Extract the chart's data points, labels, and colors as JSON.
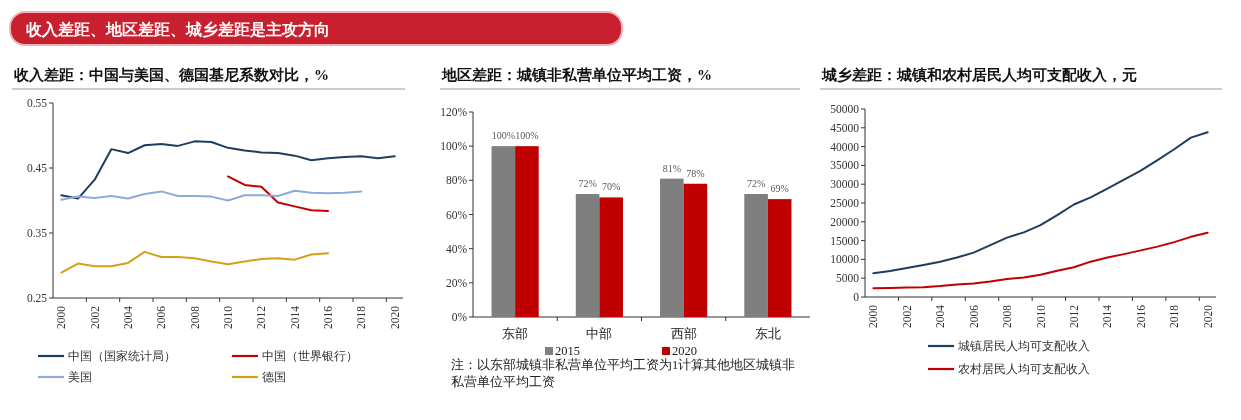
{
  "chart_data": [
    {
      "type": "line",
      "title": "收入差距、地区差距、城乡差距是主攻方向",
      "subtitle": "收入差距：中国与美国、德国基尼系数对比，%",
      "categories": [
        "2000",
        null,
        "2002",
        null,
        "2004",
        null,
        "2006",
        null,
        "2008",
        null,
        "2010",
        null,
        "2012",
        null,
        "2014",
        null,
        "2016",
        null,
        "2018",
        null,
        "2020"
      ],
      "ylim": [
        0.25,
        0.55
      ],
      "yticks": [
        0.25,
        0.35,
        0.45,
        0.55
      ],
      "legend": "bottom",
      "series": [
        {
          "name": "中国（国家统计局）",
          "color": "#1f3d5c",
          "values": [
            0.408,
            0.403,
            0.432,
            0.479,
            0.473,
            0.485,
            0.487,
            0.484,
            0.491,
            0.49,
            0.481,
            0.477,
            0.474,
            0.473,
            0.469,
            0.462,
            0.465,
            0.467,
            0.468,
            0.465,
            0.468
          ]
        },
        {
          "name": "中国（世界银行）",
          "color": "#c00000",
          "values": [
            null,
            null,
            null,
            null,
            null,
            null,
            null,
            null,
            null,
            null,
            0.437,
            0.424,
            0.421,
            0.397,
            0.391,
            0.385,
            0.384,
            null,
            null,
            null,
            null
          ]
        },
        {
          "name": "美国",
          "color": "#8eaadb",
          "values": [
            0.401,
            0.406,
            0.404,
            0.407,
            0.403,
            0.41,
            0.414,
            0.407,
            0.407,
            0.406,
            0.4,
            0.408,
            0.408,
            0.407,
            0.415,
            0.412,
            0.411,
            0.412,
            0.414,
            null,
            null
          ]
        },
        {
          "name": "德国",
          "color": "#d4a017",
          "values": [
            0.289,
            0.303,
            0.299,
            0.299,
            0.304,
            0.321,
            0.313,
            0.313,
            0.311,
            0.306,
            0.302,
            0.306,
            0.31,
            0.311,
            0.309,
            0.317,
            0.319,
            null,
            null,
            null,
            null
          ]
        }
      ]
    },
    {
      "type": "bar",
      "title": "地区差距：城镇非私营单位平均工资，%",
      "categories": [
        "东部",
        "中部",
        "西部",
        "东北"
      ],
      "ylim": [
        0,
        120
      ],
      "yticks": [
        {
          "value": 0,
          "label": "0%"
        },
        {
          "value": 20,
          "label": "20%"
        },
        {
          "value": 40,
          "label": "40%"
        },
        {
          "value": 60,
          "label": "60%"
        },
        {
          "value": 80,
          "label": "80%"
        },
        {
          "value": 100,
          "label": "100%"
        },
        {
          "value": 120,
          "label": "120%"
        }
      ],
      "legend": "bottom",
      "annotations": [
        "注：以东部城镇非私营单位平均工资为1计算其他地区城镇非私营单位平均工资"
      ],
      "series": [
        {
          "name": "2015",
          "color": "#7f7f7f",
          "values": [
            100,
            72,
            81,
            72
          ],
          "value_labels": [
            "100%",
            "72%",
            "81%",
            "72%"
          ]
        },
        {
          "name": "2020",
          "color": "#c00000",
          "values": [
            100,
            70,
            78,
            69
          ],
          "value_labels": [
            "100%",
            "70%",
            "78%",
            "69%"
          ]
        }
      ]
    },
    {
      "type": "line",
      "title": "城乡差距：城镇和农村居民人均可支配收入，元",
      "categories": [
        "2000",
        null,
        "2002",
        null,
        "2004",
        null,
        "2006",
        null,
        "2008",
        null,
        "2010",
        null,
        "2012",
        null,
        "2014",
        null,
        "2016",
        null,
        "2018",
        null,
        "2020"
      ],
      "ylim": [
        0,
        50000
      ],
      "yticks": [
        0,
        5000,
        10000,
        15000,
        20000,
        25000,
        30000,
        35000,
        40000,
        45000,
        50000
      ],
      "legend": "bottom",
      "series": [
        {
          "name": "城镇居民人均可支配收入",
          "color": "#1f3d5c",
          "values": [
            6300,
            6900,
            7700,
            8500,
            9400,
            10500,
            11800,
            13800,
            15800,
            17200,
            19100,
            21800,
            24600,
            26500,
            28800,
            31200,
            33600,
            36400,
            39300,
            42400,
            43800
          ]
        },
        {
          "name": "农村居民人均可支配收入",
          "color": "#c00000",
          "values": [
            2300,
            2400,
            2500,
            2600,
            2900,
            3300,
            3600,
            4100,
            4800,
            5200,
            5900,
            7000,
            7900,
            9400,
            10500,
            11400,
            12400,
            13400,
            14600,
            16000,
            17100
          ]
        }
      ]
    }
  ]
}
